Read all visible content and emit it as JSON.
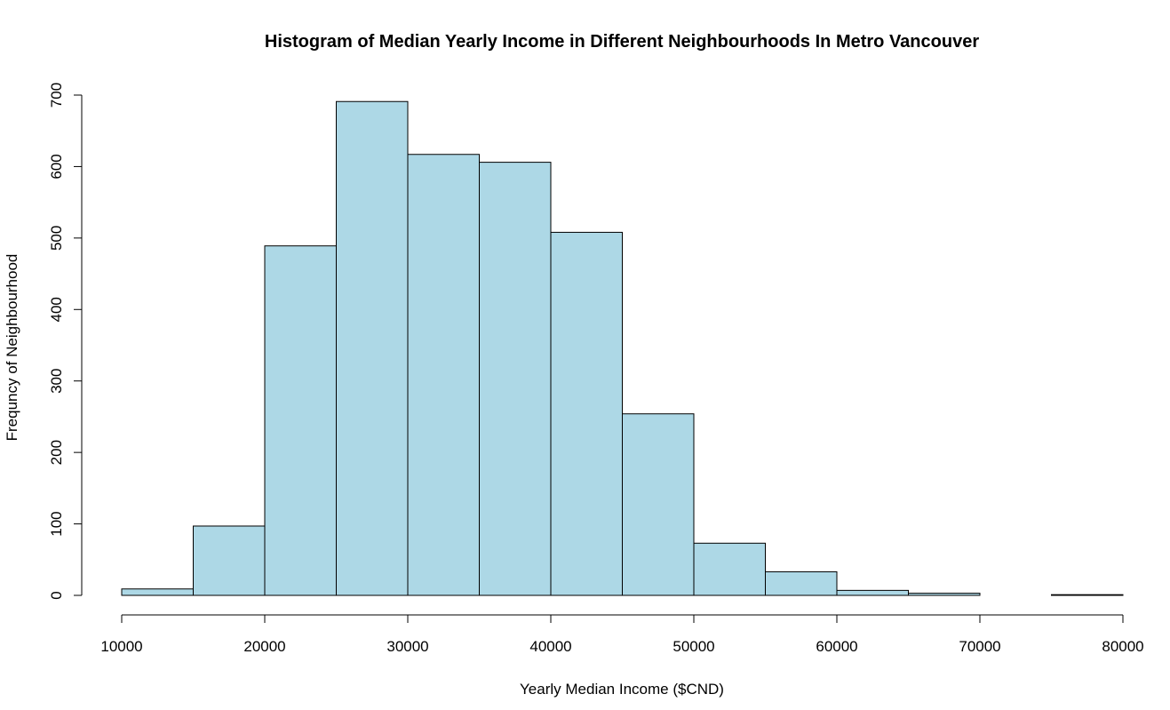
{
  "chart_data": {
    "type": "bar",
    "subtype": "histogram",
    "title": "Histogram of Median Yearly Income in Different Neighbourhoods In Metro Vancouver",
    "xlabel": "Yearly Median Income ($CND)",
    "ylabel": "Frequncy of Neighbourhood",
    "xlim": [
      10000,
      80000
    ],
    "ylim": [
      0,
      700
    ],
    "x_ticks": [
      "10000",
      "20000",
      "30000",
      "40000",
      "50000",
      "60000",
      "70000",
      "80000"
    ],
    "y_ticks": [
      "0",
      "100",
      "200",
      "300",
      "400",
      "500",
      "600",
      "700"
    ],
    "bins": [
      {
        "from": 10000,
        "to": 15000,
        "count": 9
      },
      {
        "from": 15000,
        "to": 20000,
        "count": 97
      },
      {
        "from": 20000,
        "to": 25000,
        "count": 489
      },
      {
        "from": 25000,
        "to": 30000,
        "count": 691
      },
      {
        "from": 30000,
        "to": 35000,
        "count": 617
      },
      {
        "from": 35000,
        "to": 40000,
        "count": 606
      },
      {
        "from": 40000,
        "to": 45000,
        "count": 508
      },
      {
        "from": 45000,
        "to": 50000,
        "count": 254
      },
      {
        "from": 50000,
        "to": 55000,
        "count": 73
      },
      {
        "from": 55000,
        "to": 60000,
        "count": 33
      },
      {
        "from": 60000,
        "to": 65000,
        "count": 7
      },
      {
        "from": 65000,
        "to": 70000,
        "count": 3
      },
      {
        "from": 70000,
        "to": 75000,
        "count": 0
      },
      {
        "from": 75000,
        "to": 80000,
        "count": 1
      }
    ],
    "colors": {
      "bar_fill": "#add8e6",
      "bar_stroke": "#000000"
    },
    "grid": false,
    "legend": "none"
  }
}
